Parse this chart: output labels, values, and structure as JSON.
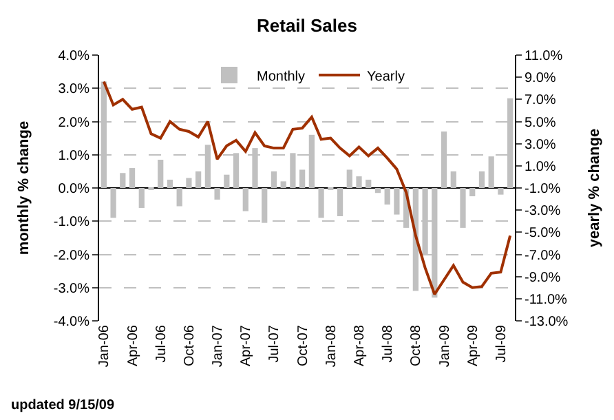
{
  "chart_data": {
    "type": "bar",
    "title": "Retail Sales",
    "ylabel": "monthly % change",
    "y2label": "yearly % change",
    "categories": [
      "Jan-06",
      null,
      null,
      "Apr-06",
      null,
      null,
      "Jul-06",
      null,
      null,
      "Oct-06",
      null,
      null,
      "Jan-07",
      null,
      null,
      "Apr-07",
      null,
      null,
      "Jul-07",
      null,
      null,
      "Oct-07",
      null,
      null,
      "Jan-08",
      null,
      null,
      "Apr-08",
      null,
      null,
      "Jul-08",
      null,
      null,
      "Oct-08",
      null,
      null,
      "Jan-09",
      null,
      null,
      "Apr-09",
      null,
      null,
      "Jul-09",
      null
    ],
    "series": [
      {
        "name": "Monthly",
        "color": "#c0c0c0",
        "values": [
          3.2,
          -0.9,
          0.45,
          0.6,
          -0.6,
          -0.05,
          0.85,
          0.25,
          -0.55,
          0.3,
          0.5,
          1.3,
          -0.35,
          0.4,
          1.05,
          -0.7,
          1.2,
          -1.05,
          0.5,
          0.2,
          1.05,
          0.55,
          1.6,
          -0.9,
          -0.05,
          -0.85,
          0.55,
          0.35,
          0.25,
          -0.15,
          -0.5,
          -0.8,
          -1.2,
          -3.1,
          -2.0,
          -3.3,
          1.7,
          0.5,
          -1.2,
          -0.25,
          0.5,
          0.95,
          -0.2,
          2.7
        ]
      },
      {
        "name": "Yearly",
        "type": "line",
        "axis": "y2",
        "color": "#a03000",
        "values": [
          8.6,
          6.5,
          7.0,
          6.1,
          6.3,
          3.9,
          3.5,
          5.0,
          4.3,
          4.1,
          3.6,
          5.0,
          1.6,
          2.8,
          3.3,
          2.3,
          4.0,
          2.8,
          2.6,
          2.6,
          4.3,
          4.4,
          5.4,
          3.4,
          3.5,
          2.6,
          1.9,
          2.7,
          1.9,
          2.6,
          1.7,
          0.7,
          -1.4,
          -5.3,
          -8.2,
          -10.6,
          -9.3,
          -8.0,
          -9.5,
          -10.0,
          -9.9,
          -8.7,
          -8.6,
          -5.3
        ]
      }
    ],
    "ylim": [
      -4,
      4
    ],
    "yticks": [
      {
        "value": -4,
        "label": "-4.0%"
      },
      {
        "value": -3,
        "label": "-3.0%"
      },
      {
        "value": -2,
        "label": "-2.0%"
      },
      {
        "value": -1,
        "label": "-1.0%"
      },
      {
        "value": 0,
        "label": "0.0%"
      },
      {
        "value": 1,
        "label": "1.0%"
      },
      {
        "value": 2,
        "label": "2.0%"
      },
      {
        "value": 3,
        "label": "3.0%"
      },
      {
        "value": 4,
        "label": "4.0%"
      }
    ],
    "y2lim": [
      -13,
      11
    ],
    "y2ticks": [
      {
        "value": -13,
        "label": "-13.0%"
      },
      {
        "value": -11,
        "label": "-11.0%"
      },
      {
        "value": -9,
        "label": "-9.0%"
      },
      {
        "value": -7,
        "label": "-7.0%"
      },
      {
        "value": -5,
        "label": "-5.0%"
      },
      {
        "value": -3,
        "label": "-3.0%"
      },
      {
        "value": -1,
        "label": "-1.0%"
      },
      {
        "value": 1,
        "label": "1.0%"
      },
      {
        "value": 3,
        "label": "3.0%"
      },
      {
        "value": 5,
        "label": "5.0%"
      },
      {
        "value": 7,
        "label": "7.0%"
      },
      {
        "value": 9,
        "label": "9.0%"
      },
      {
        "value": 11,
        "label": "11.0%"
      }
    ],
    "grid": "y",
    "legend": "top",
    "line_style": "solid",
    "annotations": [
      "updated 9/15/09"
    ]
  }
}
